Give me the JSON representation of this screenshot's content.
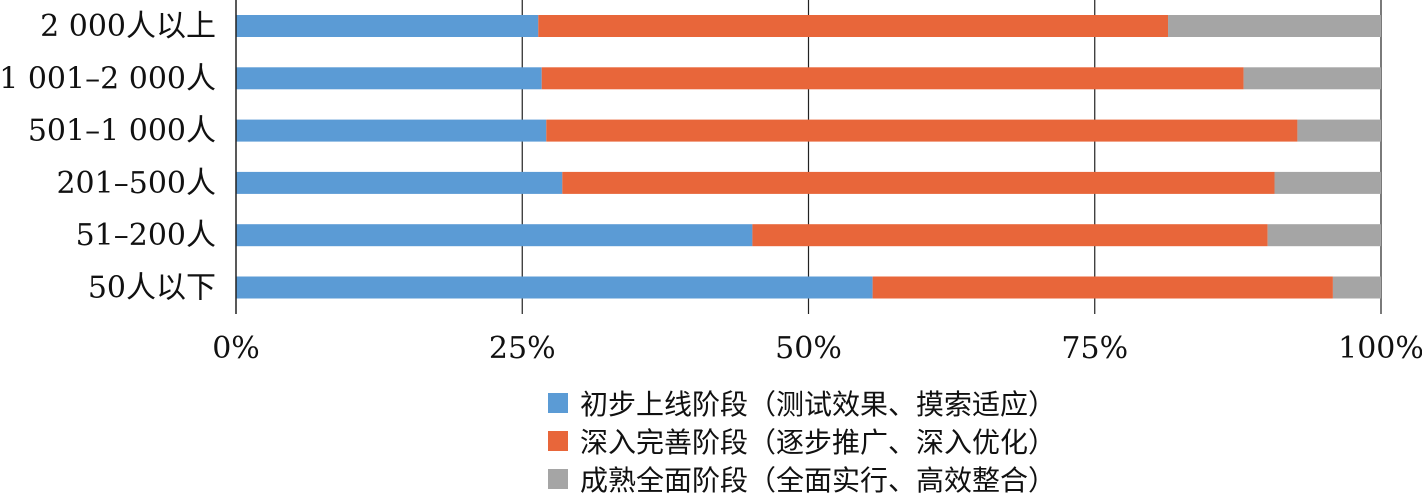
{
  "chart_data": {
    "type": "bar",
    "orientation": "horizontal",
    "stacked": "percent",
    "categories": [
      "2 000人以上",
      "1 001–2 000人",
      "501–1 000人",
      "201–500人",
      "51–200人",
      "50人以下"
    ],
    "series": [
      {
        "name": "初步上线阶段（测试效果、摸索适应）",
        "color": "#5b9bd5",
        "values": [
          26.4,
          26.7,
          27.1,
          28.5,
          45.1,
          55.6
        ]
      },
      {
        "name": "深入完善阶段（逐步推广、深入优化）",
        "color": "#e8663a",
        "values": [
          55.0,
          61.3,
          65.6,
          62.2,
          45.0,
          40.2
        ]
      },
      {
        "name": "成熟全面阶段（全面实行、高效整合）",
        "color": "#a5a5a5",
        "values": [
          18.6,
          12.0,
          7.3,
          9.3,
          9.9,
          4.2
        ]
      }
    ],
    "x_ticks": [
      "0%",
      "25%",
      "50%",
      "75%",
      "100%"
    ],
    "xlim": [
      0,
      100
    ],
    "grid": true,
    "legend_position": "bottom",
    "title": "",
    "xlabel": "",
    "ylabel": ""
  }
}
